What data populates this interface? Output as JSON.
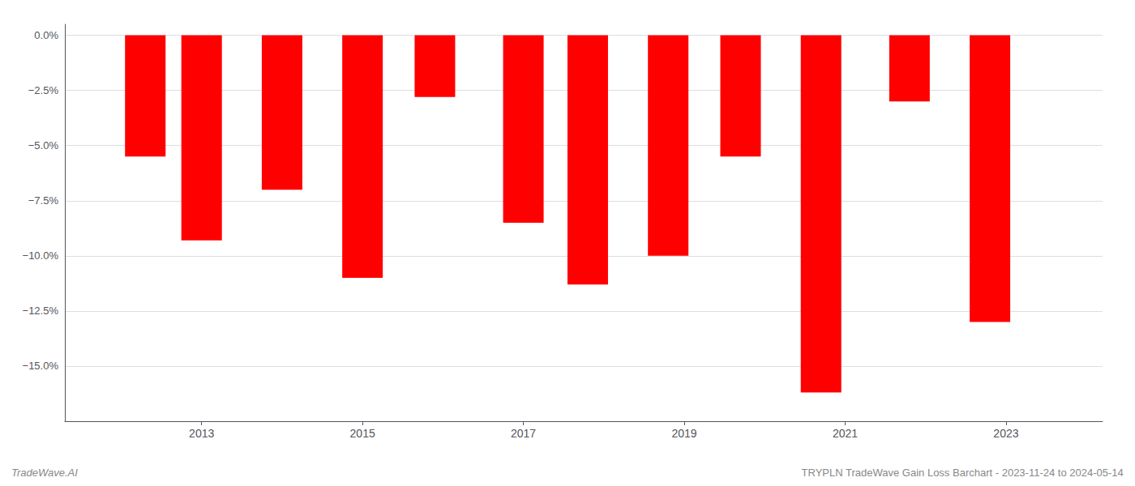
{
  "chart_data": {
    "type": "bar",
    "x": [
      2012.3,
      2013.0,
      2014.0,
      2015.0,
      2015.9,
      2017.0,
      2017.8,
      2018.8,
      2019.7,
      2020.7,
      2021.8,
      2022.8
    ],
    "values": [
      -5.5,
      -9.3,
      -7.0,
      -11.0,
      -2.8,
      -8.5,
      -11.3,
      -10.0,
      -5.5,
      -16.2,
      -3.0,
      -13.0
    ],
    "color": "#ff0000",
    "xlim": [
      2011.3,
      2024.2
    ],
    "xticks": [
      2013,
      2015,
      2017,
      2019,
      2021,
      2023
    ],
    "ylim": [
      -17.5,
      0.5
    ],
    "yticks": [
      {
        "value": 0.0,
        "label": "0.0%"
      },
      {
        "value": -2.5,
        "label": "−2.5%"
      },
      {
        "value": -5.0,
        "label": "−5.0%"
      },
      {
        "value": -7.5,
        "label": "−7.5%"
      },
      {
        "value": -10.0,
        "label": "−10.0%"
      },
      {
        "value": -12.5,
        "label": "−12.5%"
      },
      {
        "value": -15.0,
        "label": "−15.0%"
      }
    ],
    "grid": true,
    "annotations": [
      "TradeWave.AI",
      "TRYPLN TradeWave Gain Loss Barchart - 2023-11-24 to 2024-05-14"
    ]
  }
}
